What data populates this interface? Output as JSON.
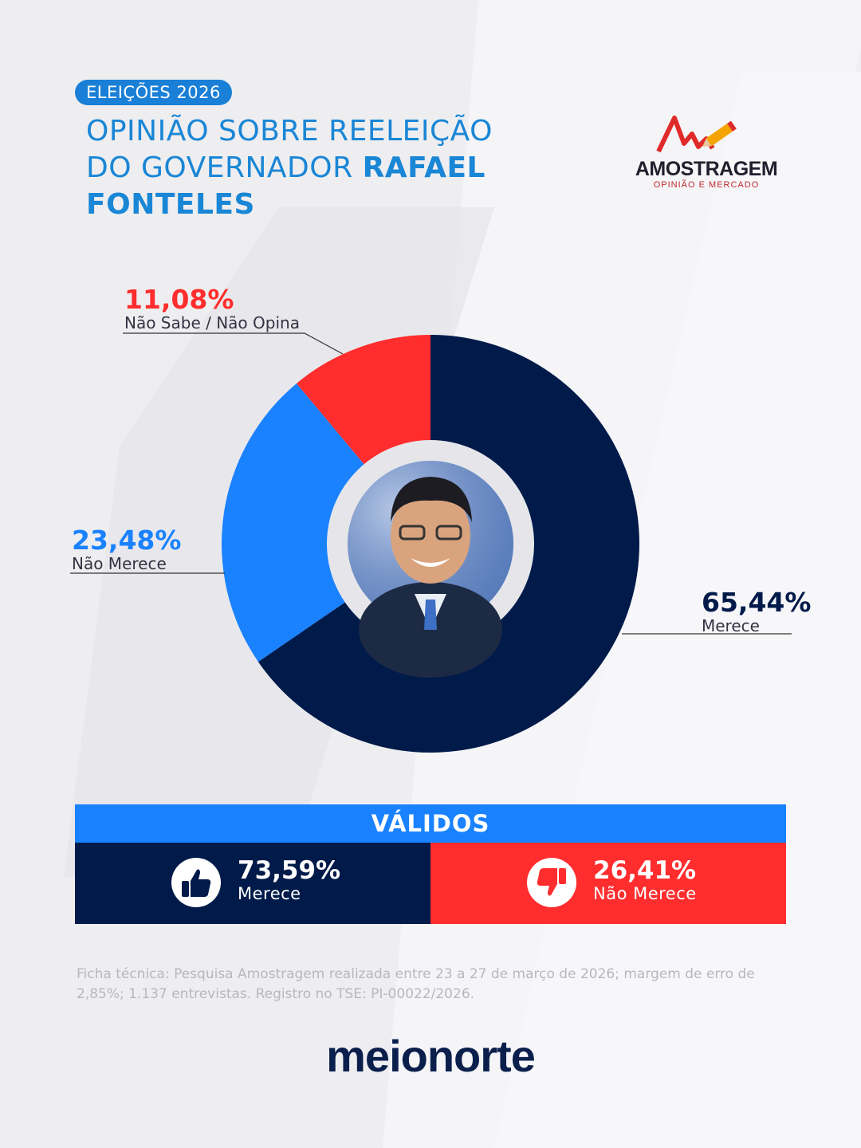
{
  "header": {
    "badge": "ELEIÇÕES 2026",
    "title_line1": "OPINIÃO SOBRE REELEIÇÃO",
    "title_line2_regular": "DO GOVERNADOR ",
    "title_line2_bold": "RAFAEL",
    "title_line3_bold": "FONTELES"
  },
  "logo": {
    "name": "AMOSTRAGEM",
    "tagline": "OPINIÃO E MERCADO",
    "icon": "pencil-chart-icon"
  },
  "chart_data": {
    "type": "pie",
    "categories": [
      "Merece",
      "Não Merece",
      "Não Sabe / Não Opina"
    ],
    "values": [
      65.44,
      23.48,
      11.08
    ],
    "labels": [
      "65,44%",
      "23,48%",
      "11,08%"
    ],
    "colors": [
      "#001a4a",
      "#1a82ff",
      "#ff2d2d"
    ],
    "donut": true,
    "center_image": "governor-portrait"
  },
  "validos": {
    "title": "VÁLIDOS",
    "items": [
      {
        "pct": "73,59%",
        "label": "Merece",
        "value": 73.59,
        "icon": "thumbs-up-icon",
        "color": "#001a4a"
      },
      {
        "pct": "26,41%",
        "label": "Não Merece",
        "value": 26.41,
        "icon": "thumbs-down-icon",
        "color": "#ff2d2d"
      }
    ]
  },
  "footnote": "Ficha técnica: Pesquisa Amostragem realizada entre 23 a 27 de março de 2026; margem de erro de 2,85%; 1.137 entrevistas. Registro no TSE: PI-00022/2026.",
  "brand": "meionorte"
}
